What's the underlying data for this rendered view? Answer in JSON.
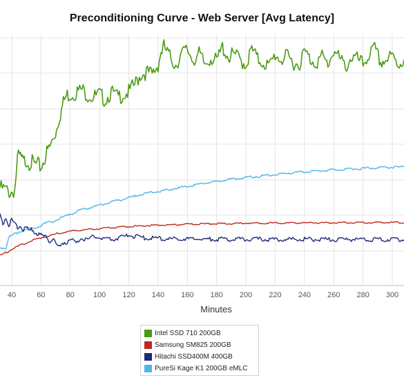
{
  "chart_data": {
    "type": "line",
    "title": "Preconditioning Curve - Web Server [Avg Latency]",
    "xlabel": "Minutes",
    "ylabel": "",
    "xlim": [
      32,
      308
    ],
    "ylim": [
      0,
      100
    ],
    "x_ticks": [
      40,
      60,
      80,
      100,
      120,
      140,
      160,
      180,
      200,
      220,
      240,
      260,
      280,
      300
    ],
    "grid": true,
    "legend_position": "bottom-center",
    "series": [
      {
        "name": "Intel SSD 710 200GB",
        "color": "#4a9a12",
        "x": [
          32,
          36,
          39,
          42,
          43,
          44,
          46,
          48,
          50,
          52,
          54,
          56,
          58,
          60,
          62,
          64,
          66,
          68,
          70,
          72,
          74,
          76,
          78,
          80,
          84,
          88,
          92,
          96,
          100,
          104,
          108,
          112,
          116,
          120,
          124,
          128,
          132,
          136,
          140,
          142,
          144,
          148,
          152,
          156,
          160,
          164,
          168,
          172,
          176,
          180,
          184,
          188,
          192,
          196,
          200,
          204,
          208,
          212,
          216,
          220,
          224,
          228,
          232,
          236,
          240,
          244,
          248,
          252,
          256,
          260,
          264,
          268,
          272,
          276,
          280,
          284,
          288,
          292,
          296,
          300,
          304,
          308
        ],
        "values": [
          39,
          38,
          37,
          38,
          44,
          51,
          51,
          49,
          50,
          49,
          49,
          48,
          48,
          47,
          50,
          53,
          55,
          58,
          61,
          66,
          70,
          74,
          76,
          76,
          77,
          78,
          76,
          75,
          76,
          74,
          77,
          75,
          76,
          77,
          80,
          84,
          85,
          84,
          88,
          93,
          95,
          91,
          88,
          92,
          94,
          90,
          92,
          88,
          91,
          89,
          95,
          91,
          92,
          90,
          88,
          94,
          90,
          89,
          87,
          92,
          90,
          91,
          89,
          88,
          93,
          90,
          89,
          91,
          88,
          94,
          90,
          87,
          91,
          90,
          88,
          92,
          94,
          89,
          90,
          91,
          88,
          90
        ]
      },
      {
        "name": "Samsung SM825 200GB",
        "color": "#c0271b",
        "x": [
          32,
          36,
          40,
          44,
          48,
          52,
          56,
          60,
          64,
          68,
          72,
          76,
          80,
          90,
          100,
          110,
          120,
          130,
          140,
          150,
          160,
          170,
          180,
          190,
          200,
          220,
          240,
          260,
          280,
          300,
          308
        ],
        "values": [
          12,
          13,
          14.5,
          15.5,
          16.5,
          17.5,
          18.3,
          19,
          19.6,
          20.2,
          20.8,
          21.2,
          21.6,
          22.2,
          22.7,
          23.1,
          23.5,
          23.8,
          24,
          24.2,
          24.4,
          24.5,
          24.6,
          24.7,
          24.8,
          24.9,
          25,
          25,
          25.1,
          25.1,
          25.1
        ]
      },
      {
        "name": "Hitachi SSD400M 400GB",
        "color": "#1b2a7a",
        "x": [
          32,
          34,
          36,
          38,
          40,
          42,
          44,
          46,
          48,
          50,
          52,
          54,
          56,
          58,
          60,
          62,
          64,
          66,
          68,
          70,
          72,
          74,
          76,
          78,
          80,
          84,
          88,
          92,
          96,
          100,
          110,
          120,
          130,
          140,
          150,
          160,
          170,
          180,
          190,
          200,
          210,
          220,
          240,
          260,
          280,
          300,
          308
        ],
        "values": [
          28,
          25,
          27,
          24,
          26,
          25,
          23,
          24,
          22,
          23,
          21.5,
          22.5,
          21,
          20.5,
          20,
          19.5,
          19,
          17.5,
          18.5,
          16.5,
          15.5,
          16.5,
          17.5,
          17,
          18,
          17.5,
          19,
          18,
          20,
          19,
          18.5,
          20,
          19,
          18.8,
          18.5,
          18.6,
          18.5,
          18.5,
          18.4,
          18.5,
          18.4,
          18.4,
          18.4,
          18.3,
          18.4,
          18.3,
          18.3
        ]
      },
      {
        "name": "PureSi Kage K1 200GB eMLC",
        "color": "#4eb5e8",
        "x": [
          32,
          34,
          36,
          37,
          38,
          40,
          44,
          48,
          52,
          56,
          60,
          64,
          68,
          72,
          76,
          80,
          90,
          100,
          110,
          120,
          130,
          140,
          150,
          160,
          170,
          180,
          190,
          200,
          210,
          220,
          230,
          240,
          250,
          260,
          270,
          280,
          290,
          300,
          308
        ],
        "values": [
          15,
          15,
          15,
          17,
          19,
          20,
          21,
          22,
          22.5,
          23,
          24,
          25,
          25.5,
          26.5,
          27.5,
          28.5,
          30.5,
          32,
          33.5,
          35,
          36.5,
          37.5,
          38.5,
          39.5,
          40.5,
          41.5,
          42.3,
          43,
          43.6,
          44.2,
          44.8,
          45.3,
          45.7,
          46.1,
          46.4,
          46.7,
          46.9,
          47.1,
          47.2
        ]
      }
    ]
  }
}
